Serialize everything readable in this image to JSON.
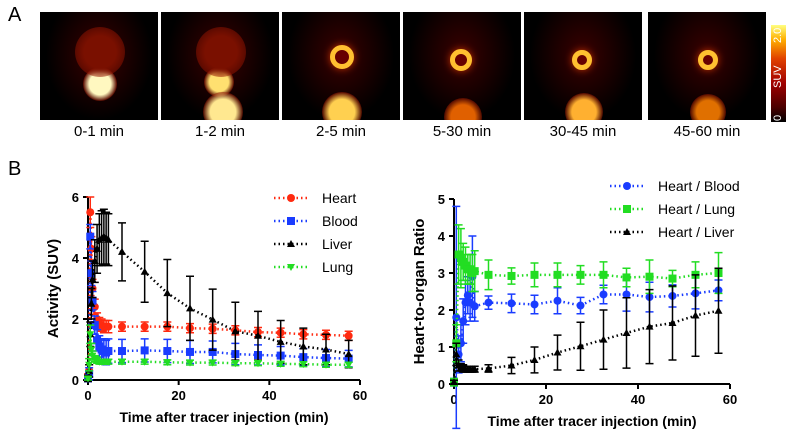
{
  "panel_a": {
    "label": "A",
    "frames": [
      "0-1 min",
      "1-2 min",
      "2-5 min",
      "5-30 min",
      "30-45 min",
      "45-60 min"
    ],
    "colorbar": {
      "label": "SUV",
      "min": "0",
      "max": "2.0"
    }
  },
  "panel_b": {
    "label": "B"
  },
  "chart_data": [
    {
      "type": "line",
      "title": "",
      "xlabel": "Time after tracer injection (min)",
      "ylabel": "Activity (SUV)",
      "xlim": [
        0,
        60
      ],
      "ylim": [
        0,
        6
      ],
      "xticks": [
        "0",
        "20",
        "40",
        "60"
      ],
      "yticks": [
        "0",
        "2",
        "4",
        "6"
      ],
      "legend": "top-right",
      "grid": false,
      "x": [
        0,
        0.25,
        0.5,
        0.75,
        1,
        1.5,
        2,
        2.5,
        3,
        3.5,
        4,
        4.5,
        7.5,
        12.5,
        17.5,
        22.5,
        27.5,
        32.5,
        37.5,
        42.5,
        47.5,
        52.5,
        57.5
      ],
      "series": [
        {
          "name": "Heart",
          "color": "#ff2a10",
          "marker": "circle",
          "values": [
            0.1,
            0.3,
            5.5,
            4.3,
            3.0,
            2.4,
            2.0,
            1.85,
            1.8,
            1.75,
            1.75,
            1.75,
            1.75,
            1.75,
            1.75,
            1.7,
            1.68,
            1.63,
            1.57,
            1.55,
            1.5,
            1.48,
            1.45
          ],
          "error": [
            0.1,
            0.2,
            0.5,
            0.4,
            0.3,
            0.25,
            0.2,
            0.2,
            0.2,
            0.2,
            0.2,
            0.2,
            0.15,
            0.15,
            0.15,
            0.15,
            0.15,
            0.15,
            0.15,
            0.15,
            0.15,
            0.15,
            0.15
          ]
        },
        {
          "name": "Blood",
          "color": "#1a3cff",
          "marker": "square",
          "values": [
            0.05,
            0.2,
            4.7,
            3.5,
            2.6,
            1.8,
            1.3,
            1.1,
            1.0,
            0.95,
            0.9,
            0.95,
            0.95,
            0.97,
            0.95,
            0.92,
            0.92,
            0.85,
            0.82,
            0.8,
            0.75,
            0.72,
            0.7
          ],
          "error": [
            0.1,
            0.2,
            0.4,
            0.4,
            0.3,
            0.3,
            0.35,
            0.35,
            0.35,
            0.4,
            0.4,
            0.4,
            0.38,
            0.38,
            0.38,
            0.38,
            0.36,
            0.35,
            0.33,
            0.3,
            0.28,
            0.28,
            0.27
          ]
        },
        {
          "name": "Liver",
          "color": "#000000",
          "marker": "triangle",
          "values": [
            0.05,
            0.3,
            1.5,
            2.5,
            3.3,
            3.9,
            4.3,
            4.6,
            4.65,
            4.7,
            4.65,
            4.6,
            4.2,
            3.55,
            2.85,
            2.35,
            1.98,
            1.6,
            1.45,
            1.25,
            1.1,
            1.0,
            0.85
          ],
          "error": [
            0.1,
            0.2,
            0.4,
            0.5,
            0.6,
            0.7,
            0.8,
            0.85,
            0.9,
            0.9,
            0.85,
            0.85,
            0.95,
            1.0,
            1.1,
            1.05,
            1.0,
            0.95,
            0.8,
            0.7,
            0.6,
            0.5,
            0.45
          ]
        },
        {
          "name": "Lung",
          "color": "#22dd22",
          "marker": "triangle-down",
          "values": [
            0.05,
            0.5,
            1.5,
            1.0,
            0.8,
            0.7,
            0.65,
            0.6,
            0.6,
            0.6,
            0.6,
            0.6,
            0.6,
            0.6,
            0.58,
            0.57,
            0.57,
            0.55,
            0.55,
            0.53,
            0.52,
            0.5,
            0.5
          ],
          "error": [
            0.05,
            0.2,
            0.3,
            0.2,
            0.15,
            0.1,
            0.1,
            0.08,
            0.08,
            0.08,
            0.08,
            0.08,
            0.08,
            0.08,
            0.08,
            0.08,
            0.08,
            0.08,
            0.08,
            0.08,
            0.08,
            0.08,
            0.08
          ]
        }
      ]
    },
    {
      "type": "line",
      "title": "",
      "xlabel": "Time after tracer injection (min)",
      "ylabel": "Heart-to-organ Ratio",
      "xlim": [
        0,
        60
      ],
      "ylim": [
        0,
        5
      ],
      "xticks": [
        "0",
        "20",
        "40",
        "60"
      ],
      "yticks": [
        "0",
        "1",
        "2",
        "3",
        "4",
        "5"
      ],
      "legend": "top-right",
      "grid": false,
      "x": [
        0,
        0.5,
        1,
        1.5,
        2,
        2.5,
        3,
        3.5,
        4,
        4.5,
        7.5,
        12.5,
        17.5,
        22.5,
        27.5,
        32.5,
        37.5,
        42.5,
        47.5,
        52.5,
        57.5
      ],
      "series": [
        {
          "name": "Heart / Blood",
          "color": "#1a3cff",
          "marker": "circle",
          "values": [
            0.05,
            1.8,
            0.8,
            1.1,
            1.7,
            2.2,
            2.4,
            2.2,
            2.9,
            2.1,
            2.2,
            2.18,
            2.15,
            2.25,
            2.12,
            2.42,
            2.42,
            2.35,
            2.38,
            2.45,
            2.53
          ],
          "error": [
            0.1,
            3.0,
            0.5,
            0.5,
            0.6,
            0.6,
            0.5,
            0.5,
            1.1,
            0.4,
            0.18,
            0.25,
            0.25,
            0.35,
            0.22,
            0.25,
            0.45,
            0.4,
            0.3,
            0.42,
            0.28
          ]
        },
        {
          "name": "Heart / Lung",
          "color": "#22dd22",
          "marker": "square",
          "values": [
            0.05,
            1.1,
            3.5,
            3.4,
            3.3,
            3.2,
            3.1,
            3.1,
            3.0,
            3.05,
            2.95,
            2.92,
            2.95,
            2.95,
            2.95,
            2.95,
            2.88,
            2.9,
            2.85,
            2.95,
            3.0
          ],
          "error": [
            0.1,
            0.5,
            0.8,
            0.8,
            0.5,
            0.5,
            0.4,
            0.4,
            0.5,
            0.55,
            0.4,
            0.22,
            0.32,
            0.32,
            0.25,
            0.35,
            0.25,
            0.45,
            0.22,
            0.35,
            0.55
          ]
        },
        {
          "name": "Heart / Liver",
          "color": "#000000",
          "marker": "triangle",
          "values": [
            0.05,
            0.8,
            0.5,
            0.45,
            0.42,
            0.4,
            0.4,
            0.4,
            0.4,
            0.4,
            0.42,
            0.5,
            0.65,
            0.85,
            1.02,
            1.2,
            1.38,
            1.55,
            1.65,
            1.85,
            1.98
          ],
          "error": [
            0.05,
            0.3,
            0.15,
            0.1,
            0.1,
            0.08,
            0.08,
            0.08,
            0.08,
            0.08,
            0.1,
            0.22,
            0.35,
            0.47,
            0.65,
            0.8,
            0.95,
            1.0,
            1.0,
            1.1,
            1.15
          ]
        }
      ]
    }
  ]
}
